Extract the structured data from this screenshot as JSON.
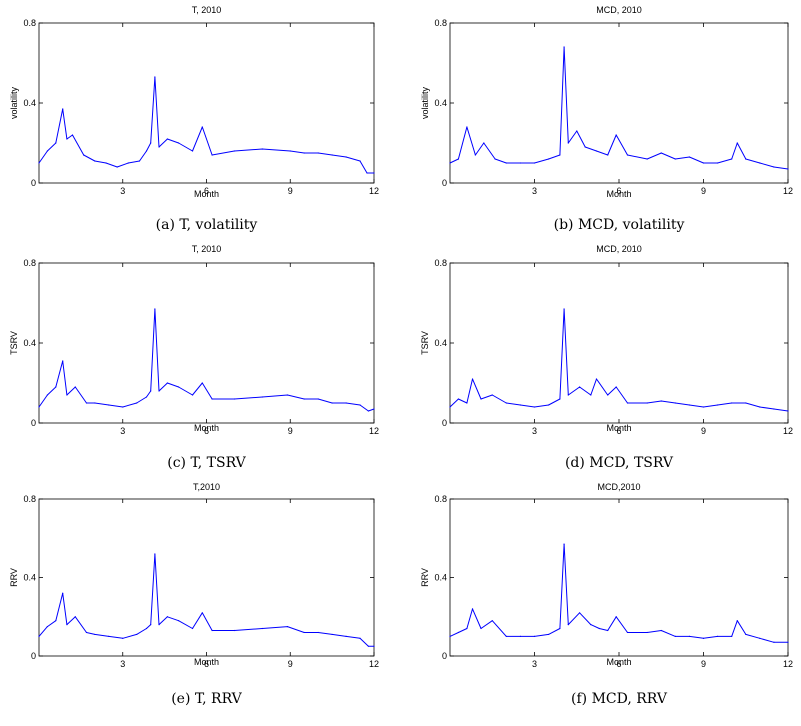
{
  "figure": {
    "panels": [
      {
        "id": "a",
        "title": "T, 2010",
        "ylabel": "volatility",
        "xlabel": "Month",
        "caption": "(a) T, volatility"
      },
      {
        "id": "b",
        "title": "MCD, 2010",
        "ylabel": "volatility",
        "xlabel": "Month",
        "caption": "(b) MCD, volatility"
      },
      {
        "id": "c",
        "title": "T, 2010",
        "ylabel": "TSRV",
        "xlabel": "Month",
        "caption": "(c) T, TSRV"
      },
      {
        "id": "d",
        "title": "MCD, 2010",
        "ylabel": "TSRV",
        "xlabel": "Month",
        "caption": "(d) MCD, TSRV"
      },
      {
        "id": "e",
        "title": "T,2010",
        "ylabel": "RRV",
        "xlabel": "Month",
        "caption": "(e) T, RRV"
      },
      {
        "id": "f",
        "title": "MCD,2010",
        "ylabel": "RRV",
        "xlabel": "Month",
        "caption": "(f) MCD, RRV"
      }
    ]
  },
  "chart_data": [
    {
      "type": "line",
      "title": "T, 2010",
      "xlabel": "Month",
      "ylabel": "volatility",
      "xlim": [
        0,
        12
      ],
      "ylim": [
        0,
        0.8
      ],
      "xticks": [
        "3",
        "6",
        "9",
        "12"
      ],
      "yticks": [
        "0",
        "0.4",
        "0.8"
      ],
      "grid": false,
      "line_color": "#0000ff",
      "x": [
        0,
        0.3,
        0.6,
        0.85,
        1.0,
        1.2,
        1.6,
        2.0,
        2.4,
        2.8,
        3.2,
        3.6,
        3.85,
        4.0,
        4.15,
        4.3,
        4.6,
        5.0,
        5.5,
        5.85,
        6.2,
        7.0,
        8.0,
        9.0,
        9.5,
        10.0,
        10.5,
        11.0,
        11.5,
        11.75,
        12.0
      ],
      "y": [
        0.1,
        0.16,
        0.2,
        0.37,
        0.22,
        0.24,
        0.14,
        0.11,
        0.1,
        0.08,
        0.1,
        0.11,
        0.16,
        0.2,
        0.53,
        0.18,
        0.22,
        0.2,
        0.16,
        0.28,
        0.14,
        0.16,
        0.17,
        0.16,
        0.15,
        0.15,
        0.14,
        0.13,
        0.11,
        0.05,
        0.05
      ]
    },
    {
      "type": "line",
      "title": "MCD, 2010",
      "xlabel": "Month",
      "ylabel": "volatility",
      "xlim": [
        0,
        12
      ],
      "ylim": [
        0,
        0.8
      ],
      "xticks": [
        "3",
        "6",
        "9",
        "12"
      ],
      "yticks": [
        "0",
        "0.4",
        "0.8"
      ],
      "grid": false,
      "line_color": "#0000ff",
      "x": [
        0,
        0.3,
        0.6,
        0.9,
        1.2,
        1.6,
        2.0,
        2.5,
        3.0,
        3.5,
        3.9,
        4.05,
        4.2,
        4.5,
        4.8,
        5.2,
        5.6,
        5.9,
        6.3,
        7.0,
        7.5,
        8.0,
        8.5,
        9.0,
        9.5,
        10.0,
        10.2,
        10.5,
        11.0,
        11.5,
        12.0
      ],
      "y": [
        0.1,
        0.12,
        0.28,
        0.14,
        0.2,
        0.12,
        0.1,
        0.1,
        0.1,
        0.12,
        0.14,
        0.68,
        0.2,
        0.26,
        0.18,
        0.16,
        0.14,
        0.24,
        0.14,
        0.12,
        0.15,
        0.12,
        0.13,
        0.1,
        0.1,
        0.12,
        0.2,
        0.12,
        0.1,
        0.08,
        0.07
      ]
    },
    {
      "type": "line",
      "title": "T, 2010",
      "xlabel": "Month",
      "ylabel": "TSRV",
      "xlim": [
        0,
        12
      ],
      "ylim": [
        0,
        0.8
      ],
      "xticks": [
        "3",
        "6",
        "9",
        "12"
      ],
      "yticks": [
        "0",
        "0.4",
        "0.8"
      ],
      "grid": false,
      "line_color": "#0000ff",
      "x": [
        0,
        0.3,
        0.6,
        0.85,
        1.0,
        1.3,
        1.7,
        2.0,
        2.5,
        3.0,
        3.5,
        3.85,
        4.0,
        4.15,
        4.3,
        4.6,
        5.0,
        5.5,
        5.85,
        6.2,
        7.0,
        8.0,
        8.9,
        9.5,
        10.0,
        10.5,
        11.0,
        11.5,
        11.8,
        12.0
      ],
      "y": [
        0.08,
        0.14,
        0.18,
        0.31,
        0.14,
        0.18,
        0.1,
        0.1,
        0.09,
        0.08,
        0.1,
        0.13,
        0.16,
        0.57,
        0.16,
        0.2,
        0.18,
        0.14,
        0.2,
        0.12,
        0.12,
        0.13,
        0.14,
        0.12,
        0.12,
        0.1,
        0.1,
        0.09,
        0.06,
        0.07
      ]
    },
    {
      "type": "line",
      "title": "MCD, 2010",
      "xlabel": "Month",
      "ylabel": "TSRV",
      "xlim": [
        0,
        12
      ],
      "ylim": [
        0,
        0.8
      ],
      "xticks": [
        "3",
        "6",
        "9",
        "12"
      ],
      "yticks": [
        "0",
        "0.4",
        "0.8"
      ],
      "grid": false,
      "line_color": "#0000ff",
      "x": [
        0,
        0.3,
        0.6,
        0.8,
        1.1,
        1.5,
        2.0,
        2.5,
        3.0,
        3.5,
        3.9,
        4.05,
        4.2,
        4.6,
        5.0,
        5.2,
        5.6,
        5.9,
        6.3,
        7.0,
        7.5,
        8.0,
        8.5,
        9.0,
        9.5,
        10.0,
        10.5,
        11.0,
        11.5,
        12.0
      ],
      "y": [
        0.08,
        0.12,
        0.1,
        0.22,
        0.12,
        0.14,
        0.1,
        0.09,
        0.08,
        0.09,
        0.12,
        0.57,
        0.14,
        0.18,
        0.14,
        0.22,
        0.14,
        0.18,
        0.1,
        0.1,
        0.11,
        0.1,
        0.09,
        0.08,
        0.09,
        0.1,
        0.1,
        0.08,
        0.07,
        0.06
      ]
    },
    {
      "type": "line",
      "title": "T,2010",
      "xlabel": "Month",
      "ylabel": "RRV",
      "xlim": [
        0,
        12
      ],
      "ylim": [
        0,
        0.8
      ],
      "xticks": [
        "3",
        "6",
        "9",
        "12"
      ],
      "yticks": [
        "0",
        "0.4",
        "0.8"
      ],
      "grid": false,
      "line_color": "#0000ff",
      "x": [
        0,
        0.3,
        0.6,
        0.85,
        1.0,
        1.3,
        1.7,
        2.0,
        2.5,
        3.0,
        3.5,
        3.85,
        4.0,
        4.15,
        4.3,
        4.6,
        5.0,
        5.5,
        5.85,
        6.2,
        7.0,
        8.0,
        8.9,
        9.5,
        10.0,
        10.5,
        11.0,
        11.5,
        11.8,
        12.0
      ],
      "y": [
        0.1,
        0.15,
        0.18,
        0.32,
        0.16,
        0.2,
        0.12,
        0.11,
        0.1,
        0.09,
        0.11,
        0.14,
        0.16,
        0.52,
        0.16,
        0.2,
        0.18,
        0.14,
        0.22,
        0.13,
        0.13,
        0.14,
        0.15,
        0.12,
        0.12,
        0.11,
        0.1,
        0.09,
        0.05,
        0.05
      ]
    },
    {
      "type": "line",
      "title": "MCD,2010",
      "xlabel": "Month",
      "ylabel": "RRV",
      "xlim": [
        0,
        12
      ],
      "ylim": [
        0,
        0.8
      ],
      "xticks": [
        "3",
        "6",
        "9",
        "12"
      ],
      "yticks": [
        "0",
        "0.4",
        "0.8"
      ],
      "grid": false,
      "line_color": "#0000ff",
      "x": [
        0,
        0.3,
        0.6,
        0.8,
        1.1,
        1.5,
        2.0,
        2.5,
        3.0,
        3.5,
        3.9,
        4.05,
        4.2,
        4.6,
        5.0,
        5.3,
        5.6,
        5.9,
        6.3,
        7.0,
        7.5,
        8.0,
        8.5,
        9.0,
        9.5,
        10.0,
        10.2,
        10.5,
        11.0,
        11.5,
        12.0
      ],
      "y": [
        0.1,
        0.12,
        0.14,
        0.24,
        0.14,
        0.18,
        0.1,
        0.1,
        0.1,
        0.11,
        0.14,
        0.57,
        0.16,
        0.22,
        0.16,
        0.14,
        0.13,
        0.2,
        0.12,
        0.12,
        0.13,
        0.1,
        0.1,
        0.09,
        0.1,
        0.1,
        0.18,
        0.11,
        0.09,
        0.07,
        0.07
      ]
    }
  ]
}
